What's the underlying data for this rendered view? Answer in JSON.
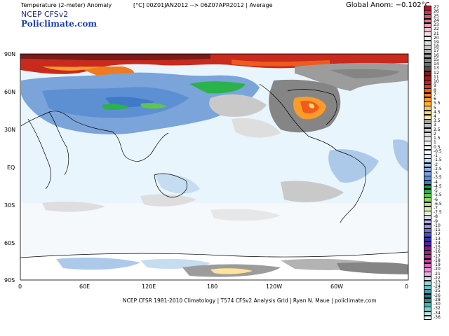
{
  "header": {
    "title_line": "Temperature (2-meter) Anomaly",
    "mid_line": "[°C]  00Z01JAN2012  -->  06Z07APR2012  |  Average",
    "brand_line1": "NCEP  CFSv2",
    "brand_line2": "Policlimate.com",
    "global_anom": "Global Anom: −0.102°C"
  },
  "footer": "NCEP CFSR 1981-2010 Climatology | T574 CFSv2 Analysis Grid | Ryan N. Maue | policlimate.com",
  "map": {
    "lat_labels": [
      "90N",
      "60N",
      "30N",
      "EQ",
      "30S",
      "60S",
      "90S"
    ],
    "lon_labels": [
      "0",
      "60E",
      "120E",
      "180",
      "120W",
      "60W",
      "0"
    ],
    "background_color": "#e8f4fb",
    "land_outline_color": "#000000"
  },
  "colorbar": {
    "labels": [
      "27",
      "26",
      "25",
      "24",
      "23",
      "22",
      "21",
      "20",
      "19",
      "18",
      "17",
      "16",
      "15",
      "14",
      "13",
      "12",
      "11",
      "10",
      "9",
      "8",
      "7",
      "6",
      "5.5",
      "5",
      "4.5",
      "4",
      "3.5",
      "3",
      "2.5",
      "2",
      "1.5",
      "1",
      "0.5",
      "-0.5",
      "-1",
      "-1.5",
      "-2",
      "-2.5",
      "-3",
      "-3.5",
      "-4",
      "-4.5",
      "-5",
      "-5.5",
      "-6",
      "-6.5",
      "-7",
      "-7.5",
      "-8",
      "-9",
      "-10",
      "-11",
      "-12",
      "-13",
      "-14",
      "-15",
      "-16",
      "-17",
      "-18",
      "-19",
      "-20",
      "-21",
      "-22",
      "-23",
      "-24",
      "-25",
      "-26",
      "-28",
      "-30",
      "-32",
      "-34",
      "-36"
    ],
    "colors": [
      "#b2182b",
      "#c8344a",
      "#d9536b",
      "#e17d92",
      "#e9a4b4",
      "#f1c6d0",
      "#f5dde3",
      "#f3f3f3",
      "#dedede",
      "#c9c9c9",
      "#b3b3b3",
      "#9c9c9c",
      "#858585",
      "#6e6e6e",
      "#5a4a4a",
      "#7a1a1a",
      "#9b1b1b",
      "#c01f1f",
      "#e0301e",
      "#f05a1a",
      "#f7801c",
      "#fb9b2a",
      "#fdb140",
      "#fdc65a",
      "#fdd77a",
      "#fde49a",
      "#a8a8a8",
      "#bfbfbf",
      "#d0d0d0",
      "#dddddd",
      "#e7e7e7",
      "#f0f0f0",
      "#ffffff",
      "#ffffff",
      "#dbeaf6",
      "#c6dcf1",
      "#acc9ea",
      "#8fb4e1",
      "#7aa4da",
      "#5d8fd3",
      "#3f79c8",
      "#1a9a3a",
      "#2bb24a",
      "#5ec64f",
      "#8ed86a",
      "#bde591",
      "#d7eeb7",
      "#e8f3d6",
      "#d7d7f3",
      "#b6b6ea",
      "#9393df",
      "#6f6fd2",
      "#4f4fc4",
      "#3a2fb0",
      "#5a1e9e",
      "#7a1e8e",
      "#9a237f",
      "#b42c8c",
      "#c848a2",
      "#d86cbb",
      "#e692d2",
      "#e9b0e2",
      "#c8e3e6",
      "#9ed3d8",
      "#6fbcc3",
      "#3c9fa8",
      "#1f7f87",
      "#2a8a8a",
      "#4db3b3",
      "#7fd0d0",
      "#b4e6e6",
      "#e2f6f6"
    ]
  }
}
